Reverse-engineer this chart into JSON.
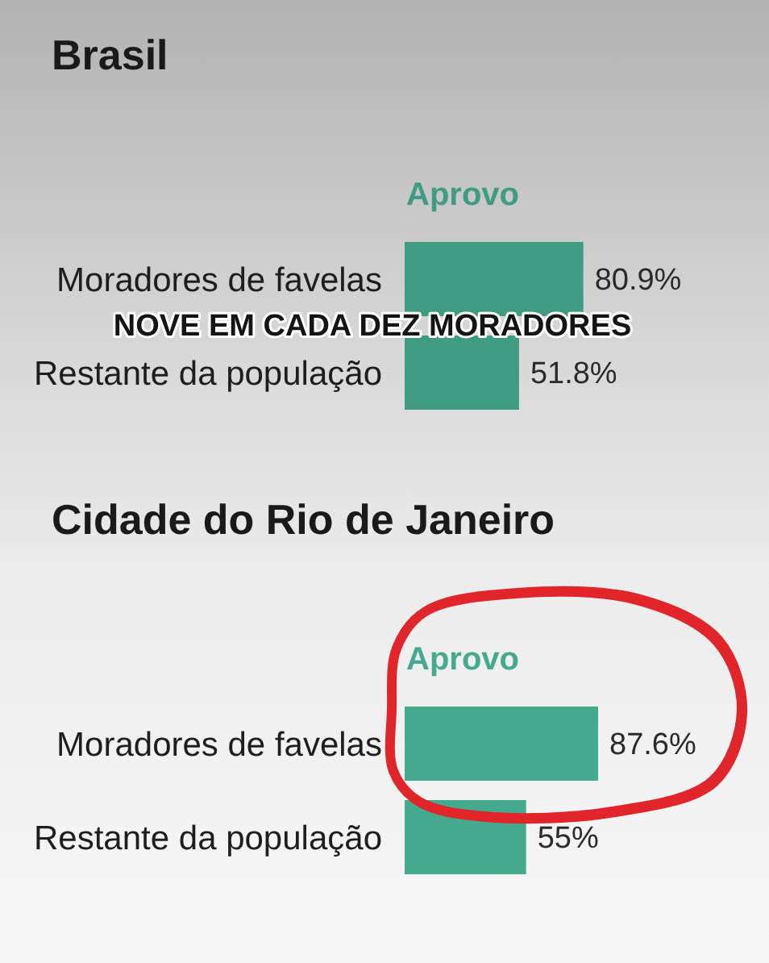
{
  "chart_data": [
    {
      "type": "bar",
      "orientation": "horizontal",
      "title": "Brasil",
      "categories": [
        "Moradores de favelas",
        "Restante da população"
      ],
      "series": [
        {
          "name": "Aprovo",
          "color": "#3f9c82",
          "values": [
            80.9,
            51.8
          ],
          "value_labels": [
            "80.9%",
            "51.8%"
          ]
        }
      ],
      "annotations": [
        "NOVE EM CADA DEZ MORADORES"
      ]
    },
    {
      "type": "bar",
      "orientation": "horizontal",
      "title": "Cidade do Rio de Janeiro",
      "categories": [
        "Moradores de favelas",
        "Restante da população"
      ],
      "series": [
        {
          "name": "Aprovo",
          "color": "#45a98e",
          "values": [
            87.6,
            55
          ],
          "value_labels": [
            "87.6%",
            "55%"
          ]
        }
      ]
    }
  ]
}
